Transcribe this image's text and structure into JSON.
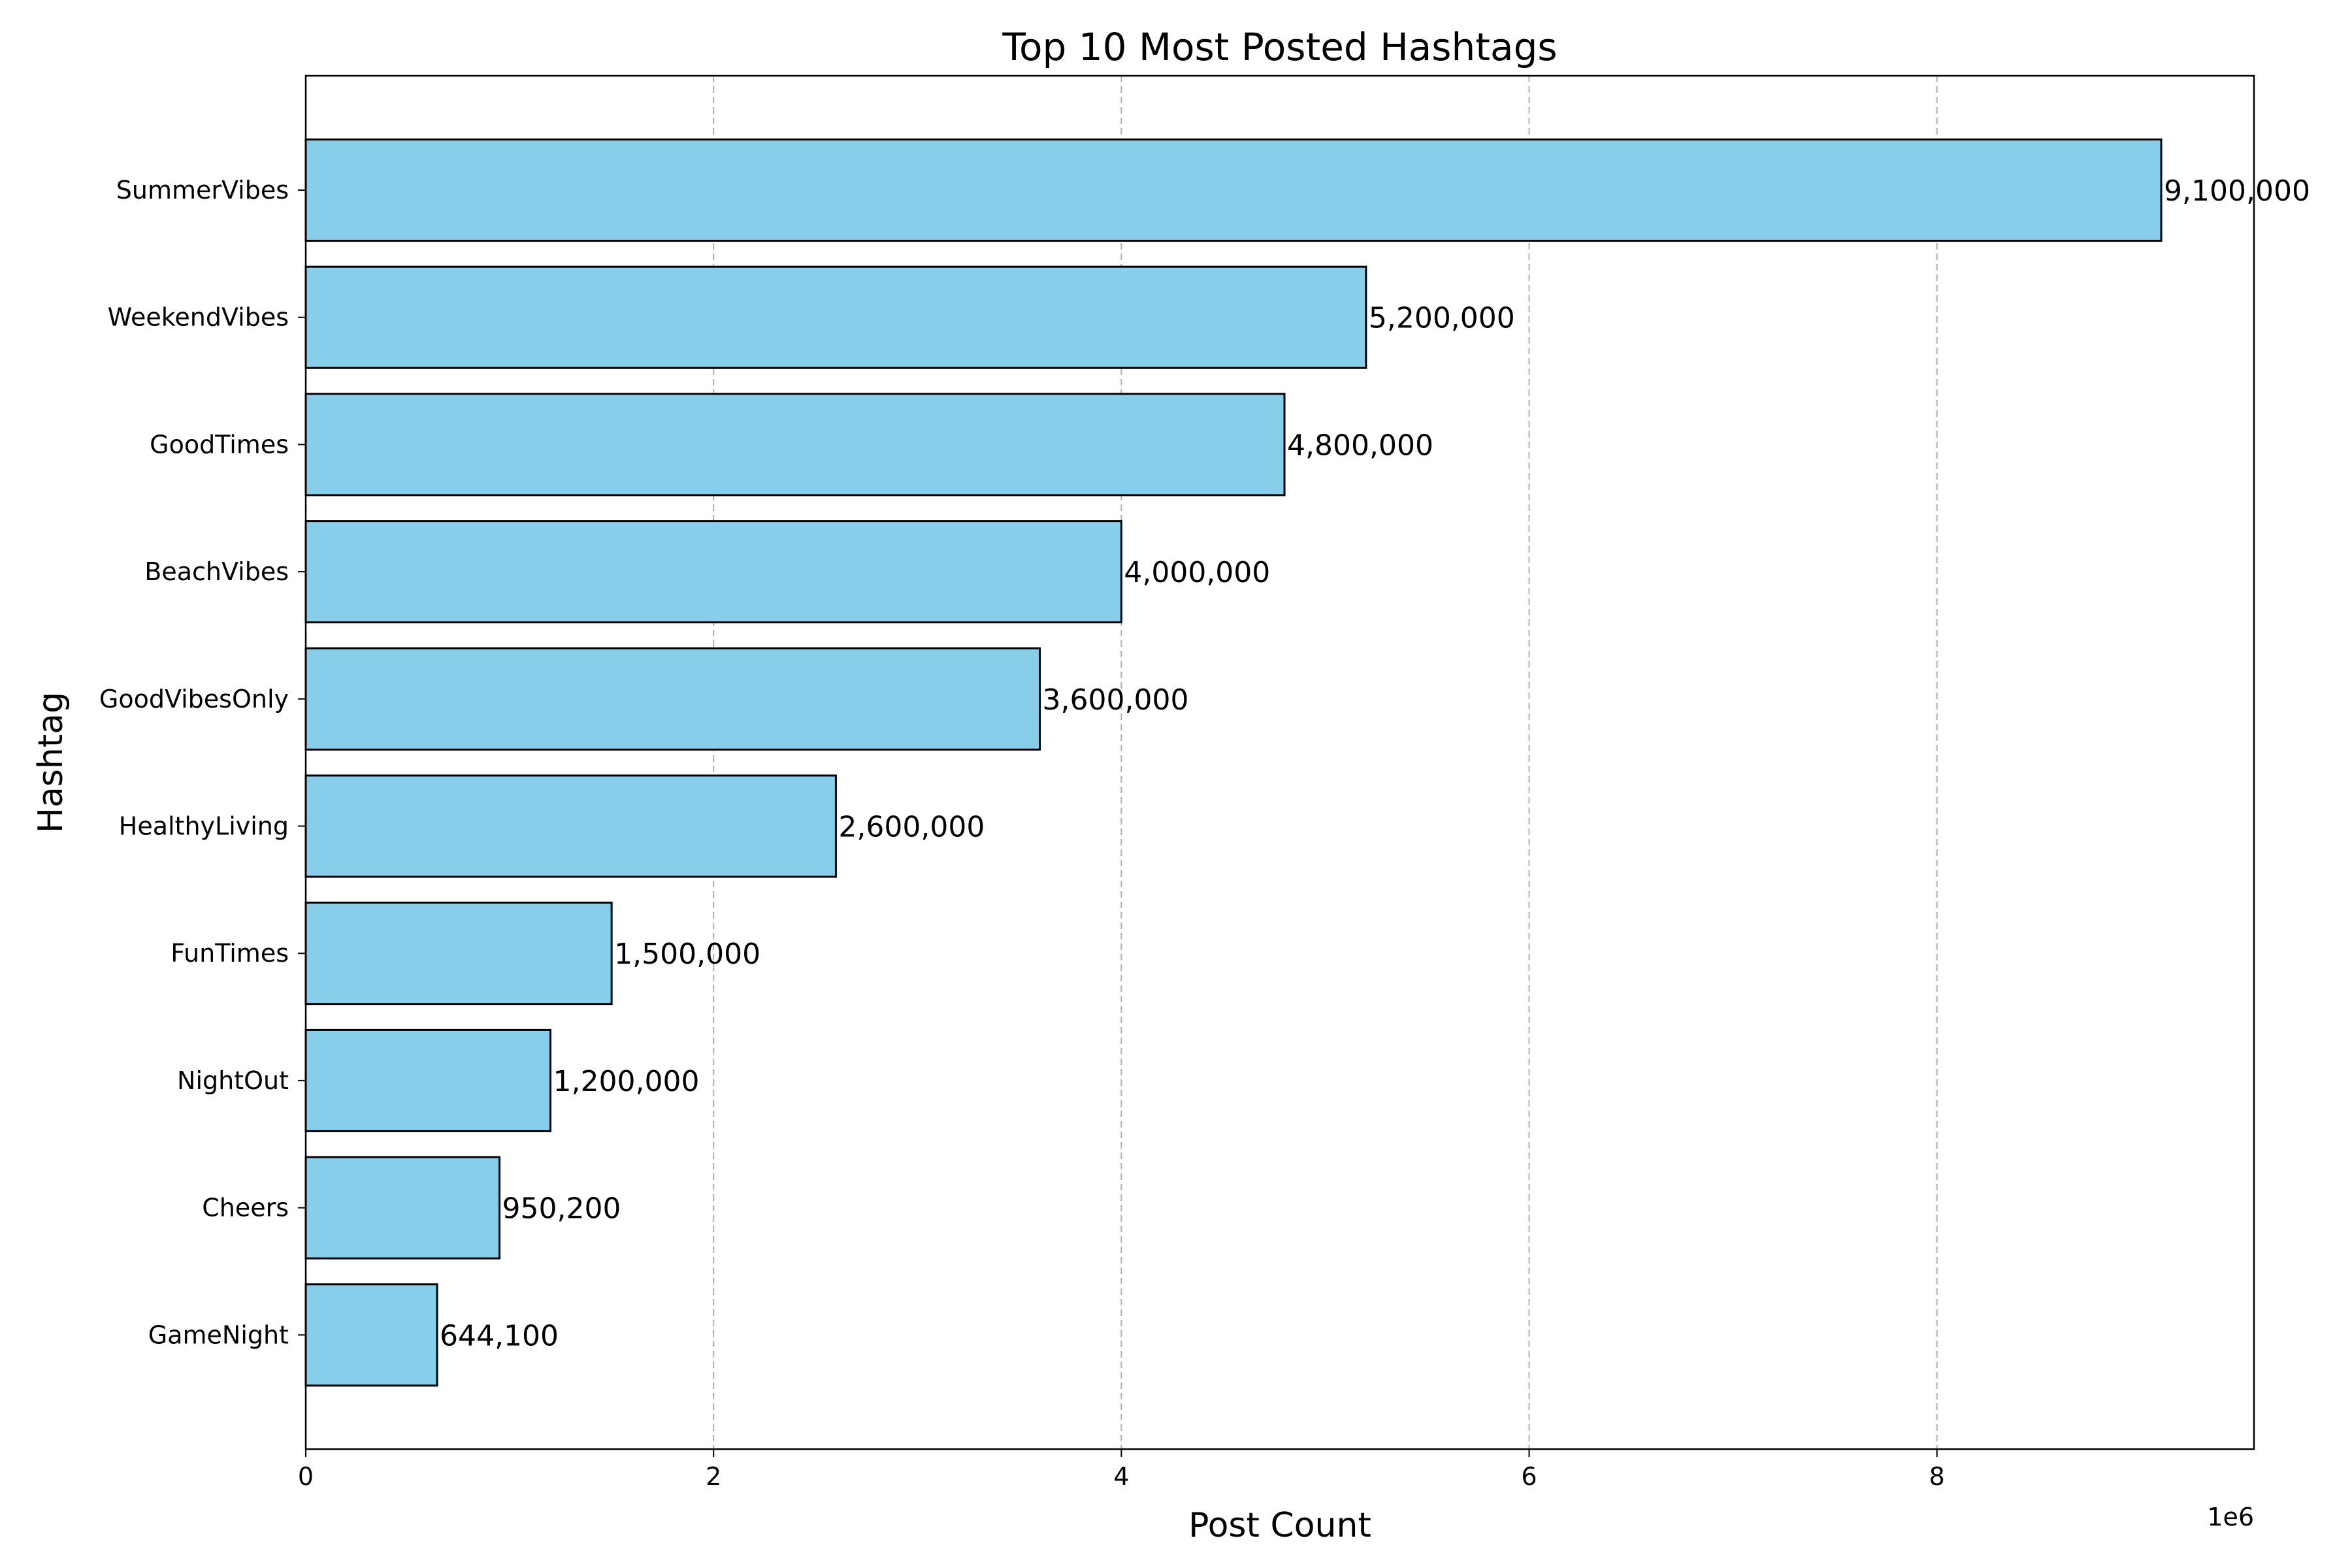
{
  "chart_data": {
    "type": "bar",
    "orientation": "horizontal",
    "title": "Top 10 Most Posted Hashtags",
    "xlabel": "Post Count",
    "ylabel": "Hashtag",
    "x_offset_text": "1e6",
    "xlim": [
      0,
      9555000
    ],
    "x_ticks": [
      0,
      2000000,
      4000000,
      6000000,
      8000000
    ],
    "x_tick_labels": [
      "0",
      "2",
      "4",
      "6",
      "8"
    ],
    "grid": "x-axis dashed",
    "bar_color": "#87ceeb",
    "bar_edge_color": "#000000",
    "categories": [
      "SummerVibes",
      "WeekendVibes",
      "GoodTimes",
      "BeachVibes",
      "GoodVibesOnly",
      "HealthyLiving",
      "FunTimes",
      "NightOut",
      "Cheers",
      "GameNight"
    ],
    "values": [
      9100000,
      5200000,
      4800000,
      4000000,
      3600000,
      2600000,
      1500000,
      1200000,
      950200,
      644100
    ],
    "data_labels": [
      "9,100,000",
      "5,200,000",
      "4,800,000",
      "4,000,000",
      "3,600,000",
      "2,600,000",
      "1,500,000",
      "1,200,000",
      "950,200",
      "644,100"
    ]
  }
}
